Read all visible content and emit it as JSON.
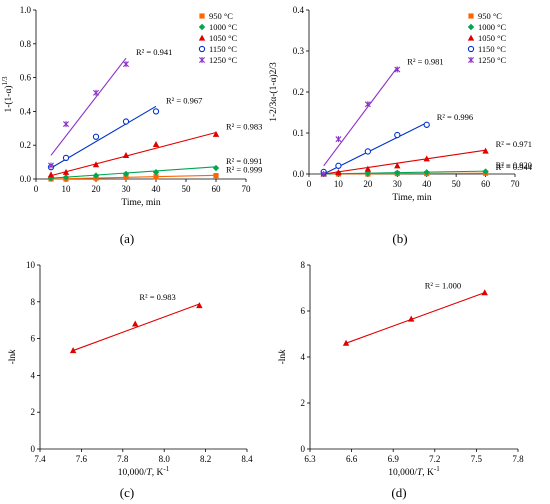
{
  "chart_data": [
    {
      "id": "a",
      "type": "scatter",
      "panel_label": "(a)",
      "xlabel": "Time, min",
      "ylabel": "1-(1-α)",
      "ylabel_sup": "1/3",
      "xlim": [
        0,
        70
      ],
      "ylim": [
        0,
        1.0
      ],
      "xticks": [
        "0",
        "10",
        "20",
        "30",
        "40",
        "50",
        "60",
        "70"
      ],
      "yticks": [
        "0.0",
        "0.2",
        "0.4",
        "0.6",
        "0.8",
        "1.0"
      ],
      "xtick_values": [
        0,
        10,
        20,
        30,
        40,
        50,
        60,
        70
      ],
      "ytick_values": [
        0,
        0.2,
        0.4,
        0.6,
        0.8,
        1.0
      ],
      "legend_position": "top-right",
      "series": [
        {
          "name": "950 °C",
          "color": "#ff6600",
          "marker": "square",
          "x": [
            5,
            10,
            20,
            30,
            40,
            60
          ],
          "y": [
            0.0,
            0.0,
            0.005,
            0.01,
            0.013,
            0.02
          ],
          "fit": [
            [
              5,
              0.0
            ],
            [
              60,
              0.022
            ]
          ],
          "r2": "R² = 0.999"
        },
        {
          "name": "1000 °C",
          "color": "#00a650",
          "marker": "diamond",
          "x": [
            5,
            10,
            20,
            30,
            40,
            60
          ],
          "y": [
            0.005,
            0.01,
            0.02,
            0.03,
            0.04,
            0.065
          ],
          "fit": [
            [
              5,
              0.005
            ],
            [
              60,
              0.072
            ]
          ],
          "r2": "R² = 0.991"
        },
        {
          "name": "1050 °C",
          "color": "#e00000",
          "marker": "triangle",
          "x": [
            5,
            10,
            20,
            30,
            40,
            60
          ],
          "y": [
            0.025,
            0.04,
            0.085,
            0.14,
            0.205,
            0.265
          ],
          "fit": [
            [
              5,
              0.02
            ],
            [
              60,
              0.275
            ]
          ],
          "r2": "R² = 0.983"
        },
        {
          "name": "1150 °C",
          "color": "#0033cc",
          "marker": "circle",
          "x": [
            5,
            10,
            20,
            30,
            40
          ],
          "y": [
            0.07,
            0.125,
            0.25,
            0.34,
            0.4
          ],
          "fit": [
            [
              5,
              0.065
            ],
            [
              40,
              0.43
            ]
          ],
          "r2": "R² = 0.967"
        },
        {
          "name": "1250 °C",
          "color": "#8b2fc9",
          "marker": "x",
          "x": [
            5,
            10,
            20,
            30
          ],
          "y": [
            0.08,
            0.325,
            0.51,
            0.68
          ],
          "fit": [
            [
              5,
              0.14
            ],
            [
              30,
              0.715
            ]
          ],
          "r2": "R² = 0.941"
        }
      ]
    },
    {
      "id": "b",
      "type": "scatter",
      "panel_label": "(b)",
      "xlabel": "Time, min",
      "ylabel": "1-2/3α-(1-α)2/3",
      "xlim": [
        0,
        70
      ],
      "ylim": [
        0,
        0.4
      ],
      "xticks": [
        "0",
        "10",
        "20",
        "30",
        "40",
        "50",
        "60",
        "70"
      ],
      "yticks": [
        "0.0",
        "0.1",
        "0.2",
        "0.3",
        "0.4"
      ],
      "xtick_values": [
        0,
        10,
        20,
        30,
        40,
        50,
        60,
        70
      ],
      "ytick_values": [
        0,
        0.1,
        0.2,
        0.3,
        0.4
      ],
      "legend_position": "top-right",
      "series": [
        {
          "name": "950 °C",
          "color": "#ff6600",
          "marker": "square",
          "x": [
            5,
            10,
            20,
            30,
            40,
            60
          ],
          "y": [
            0.0,
            0.0,
            0.0,
            0.001,
            0.001,
            0.002
          ],
          "fit": [
            [
              5,
              0.0
            ],
            [
              60,
              0.002
            ]
          ],
          "r2": "R² = 0.944"
        },
        {
          "name": "1000 °C",
          "color": "#00a650",
          "marker": "diamond",
          "x": [
            5,
            10,
            20,
            30,
            40,
            60
          ],
          "y": [
            0.0,
            0.001,
            0.002,
            0.003,
            0.004,
            0.006
          ],
          "fit": [
            [
              5,
              0.0
            ],
            [
              60,
              0.007
            ]
          ],
          "r2": "R² = 0.920"
        },
        {
          "name": "1050 °C",
          "color": "#e00000",
          "marker": "triangle",
          "x": [
            5,
            10,
            20,
            30,
            40,
            60
          ],
          "y": [
            0.001,
            0.004,
            0.012,
            0.02,
            0.037,
            0.056
          ],
          "fit": [
            [
              5,
              0.0
            ],
            [
              60,
              0.058
            ]
          ],
          "r2": "R² = 0.971"
        },
        {
          "name": "1150 °C",
          "color": "#0033cc",
          "marker": "circle",
          "x": [
            5,
            10,
            20,
            30,
            40
          ],
          "y": [
            0.005,
            0.02,
            0.055,
            0.095,
            0.12
          ],
          "fit": [
            [
              5,
              0.0
            ],
            [
              40,
              0.125
            ]
          ],
          "r2": "R² = 0.996"
        },
        {
          "name": "1250 °C",
          "color": "#8b2fc9",
          "marker": "x",
          "x": [
            5,
            10,
            20,
            30
          ],
          "y": [
            0.0,
            0.085,
            0.17,
            0.255
          ],
          "fit": [
            [
              5,
              0.02
            ],
            [
              30,
              0.26
            ]
          ],
          "r2": "R² = 0.981"
        }
      ]
    },
    {
      "id": "c",
      "type": "scatter",
      "panel_label": "(c)",
      "xlabel_pre": "10,000/",
      "xlabel_it": "T",
      "xlabel_post": ", K",
      "xlabel_sup": "-1",
      "ylabel_pre": "-ln",
      "ylabel_it": "k",
      "xlim": [
        7.4,
        8.4
      ],
      "ylim": [
        0,
        10
      ],
      "xticks": [
        "7.4",
        "7.6",
        "7.8",
        "8.0",
        "8.2",
        "8.4"
      ],
      "yticks": [
        "0",
        "2",
        "4",
        "6",
        "8",
        "10"
      ],
      "xtick_values": [
        7.4,
        7.6,
        7.8,
        8.0,
        8.2,
        8.4
      ],
      "ytick_values": [
        0,
        2,
        4,
        6,
        8,
        10
      ],
      "series": [
        {
          "color": "#e00000",
          "marker": "triangle",
          "x": [
            7.56,
            7.86,
            8.17
          ],
          "y": [
            5.35,
            6.8,
            7.8
          ],
          "fit": [
            [
              7.56,
              5.35
            ],
            [
              8.17,
              7.88
            ]
          ],
          "r2": "R² = 0.983"
        }
      ]
    },
    {
      "id": "d",
      "type": "scatter",
      "panel_label": "(d)",
      "xlabel_pre": "10,000/",
      "xlabel_it": "T",
      "xlabel_post": ", K",
      "xlabel_sup": "-1",
      "ylabel_pre": "-ln",
      "ylabel_it": "k",
      "xlim": [
        6.3,
        7.8
      ],
      "ylim": [
        0,
        8
      ],
      "xticks": [
        "6.3",
        "6.6",
        "6.9",
        "7.2",
        "7.5",
        "7.8"
      ],
      "yticks": [
        "0",
        "2",
        "4",
        "6",
        "8"
      ],
      "xtick_values": [
        6.3,
        6.6,
        6.9,
        7.2,
        7.5,
        7.8
      ],
      "ytick_values": [
        0,
        2,
        4,
        6,
        8
      ],
      "series": [
        {
          "color": "#e00000",
          "marker": "triangle",
          "x": [
            6.56,
            7.03,
            7.56
          ],
          "y": [
            4.6,
            5.65,
            6.8
          ],
          "fit": [
            [
              6.56,
              4.6
            ],
            [
              7.56,
              6.8
            ]
          ],
          "r2": "R² = 1.000"
        }
      ]
    }
  ]
}
